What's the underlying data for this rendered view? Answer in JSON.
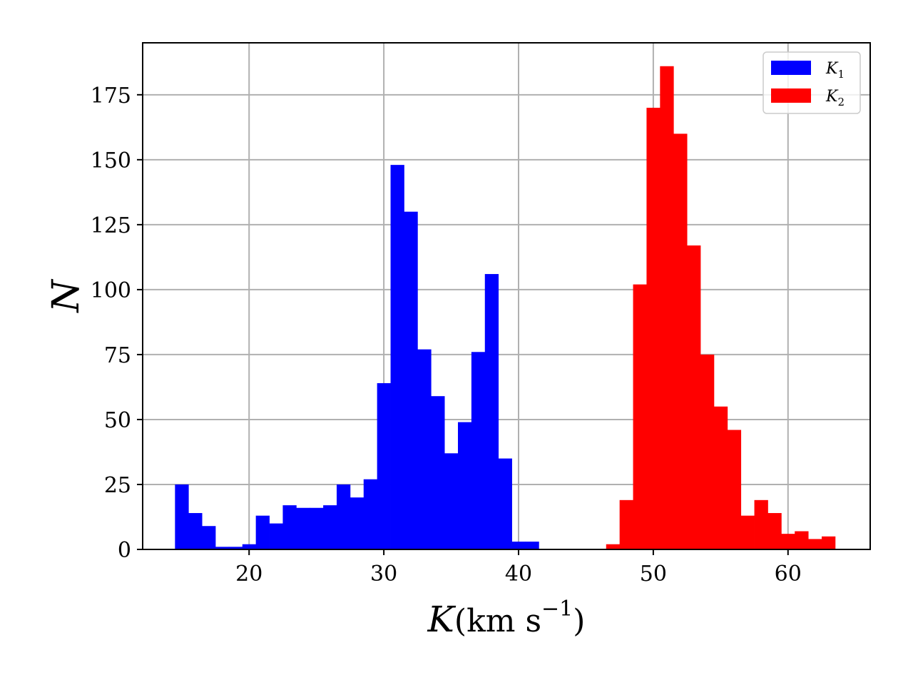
{
  "chart_data": {
    "type": "bar",
    "title": "",
    "xlabel": "K(km s^-1)",
    "ylabel": "N",
    "xlabel_parts": {
      "var": "K",
      "open": "(",
      "unit": "km s",
      "sup": "−1",
      "close": ")"
    },
    "xlim": [
      12.1,
      66.1
    ],
    "ylim": [
      0,
      195
    ],
    "xticks": [
      20,
      30,
      40,
      50,
      60
    ],
    "yticks": [
      0,
      25,
      50,
      75,
      100,
      125,
      150,
      175
    ],
    "grid": true,
    "legend_position": "top-right",
    "series": [
      {
        "name": "K",
        "subscript": "1",
        "color": "#0000ff",
        "bin_start": 14.5,
        "bin_width": 1.0,
        "counts": [
          25,
          14,
          9,
          1,
          1,
          2,
          13,
          10,
          17,
          16,
          16,
          17,
          25,
          20,
          27,
          64,
          148,
          130,
          77,
          59,
          37,
          49,
          76,
          106,
          35,
          3,
          3
        ]
      },
      {
        "name": "K",
        "subscript": "2",
        "color": "#ff0000",
        "bin_start": 46.5,
        "bin_width": 1.0,
        "counts": [
          2,
          19,
          102,
          170,
          186,
          160,
          117,
          75,
          55,
          46,
          13,
          19,
          14,
          6,
          7,
          4,
          5
        ]
      }
    ]
  }
}
